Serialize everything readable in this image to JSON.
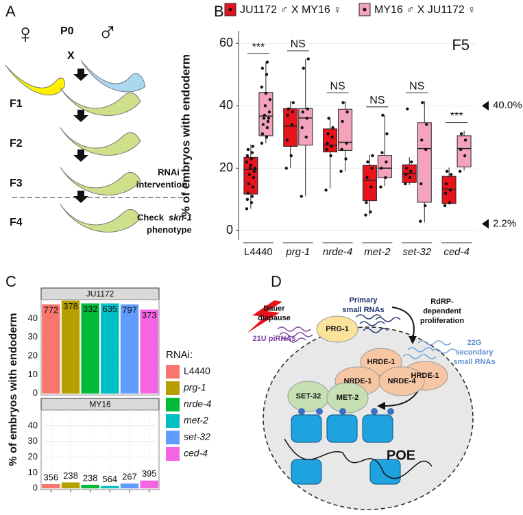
{
  "panel_labels": [
    "A",
    "B",
    "C",
    "D"
  ],
  "panel_a": {
    "female": "♀",
    "male": "♂",
    "p0": "P0",
    "cross": "X",
    "generations": [
      "F1",
      "F2",
      "F3",
      "F4"
    ],
    "rnai": [
      "RNAi",
      "intervention"
    ],
    "check": [
      "Check",
      "skn-1",
      "phenotype"
    ]
  },
  "chart_data": [
    {
      "type": "box",
      "title": "F5",
      "ylabel": "% of embryos with endoderm",
      "categories": [
        "L4440",
        "prg-1",
        "nrde-4",
        "met-2",
        "set-32",
        "ced-4"
      ],
      "ylim": [
        -3,
        64
      ],
      "yticks": [
        0,
        20,
        40,
        60
      ],
      "grid": true,
      "series": [
        {
          "name": "JU1172 ♂ X MY16 ♀",
          "color": "#e8141b",
          "boxes": [
            {
              "low": 7,
              "q1": 11.7,
              "median": 19.6,
              "q3": 23.5,
              "high": 27.6,
              "points": [
                7,
                9,
                10,
                11,
                12,
                14,
                15,
                17,
                18,
                19,
                20,
                20,
                21,
                22,
                23,
                24,
                25,
                26,
                27
              ]
            },
            {
              "low": 20,
              "q1": 27,
              "median": 33.5,
              "q3": 39.1,
              "high": 41.5,
              "points": [
                20,
                24,
                29,
                34,
                37,
                38,
                39,
                41
              ]
            },
            {
              "low": 13.5,
              "q1": 25.2,
              "median": 27.4,
              "q3": 32.6,
              "high": 36.1,
              "points": [
                13,
                24,
                26,
                27,
                28,
                30,
                31,
                33,
                36
              ]
            },
            {
              "low": 5,
              "q1": 9.6,
              "median": 16.1,
              "q3": 20.9,
              "high": 24.3,
              "points": [
                5,
                6,
                9,
                14,
                17,
                20,
                22,
                24
              ]
            },
            {
              "low": 14.6,
              "q1": 15.4,
              "median": 18.3,
              "q3": 21.1,
              "high": 23.5,
              "points": [
                15,
                17,
                18,
                19,
                20,
                22,
                39
              ]
            },
            {
              "low": 8.3,
              "q1": 8.7,
              "median": 13.3,
              "q3": 17.4,
              "high": 20.2,
              "points": [
                8,
                9,
                12,
                13,
                15,
                18,
                19
              ]
            }
          ]
        },
        {
          "name": "MY16 ♂ X JU1172 ♀",
          "color": "#f4a3bd",
          "boxes": [
            {
              "low": 28,
              "q1": 30.4,
              "median": 36.7,
              "q3": 44.3,
              "high": 54,
              "points": [
                28,
                30,
                31,
                33,
                34,
                35,
                36,
                36,
                37,
                38,
                40,
                42,
                44,
                46,
                50,
                52,
                54
              ]
            },
            {
              "low": 11,
              "q1": 27.4,
              "median": 36.1,
              "q3": 39.1,
              "high": 55,
              "points": [
                11,
                30,
                33,
                36,
                38,
                39,
                52,
                55
              ]
            },
            {
              "low": 19,
              "q1": 25.7,
              "median": 28.3,
              "q3": 38.9,
              "high": 41.5,
              "points": [
                19,
                23,
                26,
                28,
                35,
                38,
                41
              ]
            },
            {
              "low": 14.3,
              "q1": 17,
              "median": 20,
              "q3": 24.1,
              "high": 37,
              "points": [
                14,
                17,
                20,
                22,
                25,
                31,
                37
              ]
            },
            {
              "low": 2.6,
              "q1": 9.1,
              "median": 26.3,
              "q3": 34.6,
              "high": 41.5,
              "points": [
                3,
                8,
                15,
                26,
                29,
                34,
                41
              ]
            },
            {
              "low": 19.3,
              "q1": 20.4,
              "median": 26.3,
              "q3": 30.4,
              "high": 32,
              "points": [
                19,
                24,
                26,
                29,
                31
              ]
            }
          ]
        }
      ],
      "significance": [
        "***",
        "NS",
        "NS",
        "NS",
        "NS",
        "***"
      ],
      "reference_marks": [
        {
          "value": 40,
          "label": "40.0%"
        },
        {
          "value": 2.2,
          "label": "2.2%"
        }
      ]
    },
    {
      "type": "bar",
      "ylabel": "% of embryos with endoderm",
      "legend_title": "RNAi:",
      "categories": [
        "L4440",
        "prg-1",
        "nrde-4",
        "met-2",
        "set-32",
        "ced-4"
      ],
      "colors": [
        "#f8766d",
        "#b79f00",
        "#00ba38",
        "#00bfc4",
        "#619cff",
        "#f564e3"
      ],
      "ylim": [
        -0.8,
        50
      ],
      "yticks": [
        0,
        10,
        20,
        30,
        40
      ],
      "grid": true,
      "facets": [
        {
          "title": "JU1172",
          "values": [
            47.5,
            49.5,
            48,
            48,
            47.5,
            44.7
          ],
          "counts": [
            772,
            378,
            332,
            635,
            797,
            373
          ]
        },
        {
          "title": "MY16",
          "values": [
            2.7,
            3.8,
            2.3,
            1.5,
            3.1,
            5
          ],
          "counts": [
            356,
            238,
            238,
            564,
            267,
            395
          ]
        }
      ]
    }
  ],
  "panel_d": {
    "dauer": [
      "Dauer",
      "diapause"
    ],
    "primary": [
      "Primary",
      "small RNAs"
    ],
    "rdrp": [
      "RdRP-",
      "dependent",
      "proliferation"
    ],
    "pirna": "21U piRNAs",
    "prg1": "PRG-1",
    "secondary": [
      "22G",
      "secondary",
      "small RNAs"
    ],
    "hrde_out": "HRDE-1",
    "hrde_in": "HRDE-1",
    "nrde1": "NRDE-1",
    "nrde4": "NRDE-4",
    "set32": "SET-32",
    "met2": "MET-2",
    "poe": "POE"
  }
}
